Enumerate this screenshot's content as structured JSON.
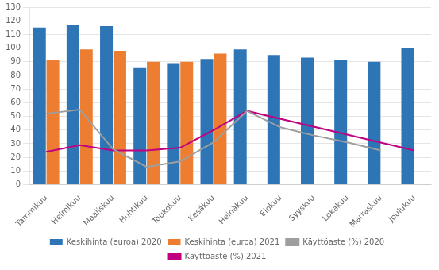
{
  "chart_data": {
    "type": "bar",
    "categories": [
      "Tammikuu",
      "Helmikuu",
      "Maaliskuu",
      "Huhtikuu",
      "Toukokuu",
      "Kesäkuu",
      "Heinäkuu",
      "Elokuu",
      "Syyskuu",
      "Lokakuu",
      "Marraskuu",
      "Joulukuu"
    ],
    "series": [
      {
        "name": "Keskihinta (euroa) 2020",
        "type": "bar",
        "color": "#2E75B6",
        "values": [
          115,
          117,
          116,
          86,
          89,
          92,
          99,
          95,
          93,
          91,
          90,
          100
        ]
      },
      {
        "name": "Keskihinta (euroa) 2021",
        "type": "bar",
        "color": "#ED7D31",
        "values": [
          91,
          99,
          98,
          90,
          90,
          96,
          null,
          null,
          null,
          null,
          null,
          null
        ]
      },
      {
        "name": "Käyttöaste (%) 2020",
        "type": "line",
        "color": "#9E9E9E",
        "values": [
          52,
          55,
          26,
          13,
          17,
          31,
          54,
          42,
          36,
          31,
          25,
          null
        ]
      },
      {
        "name": "Käyttöaste (%) 2021",
        "type": "line",
        "color": "#C00080",
        "values": [
          24,
          29,
          25,
          25,
          27,
          40,
          54,
          null,
          null,
          null,
          null,
          25
        ]
      }
    ],
    "ylim": [
      0,
      130
    ],
    "yticks": [
      0,
      10,
      20,
      30,
      40,
      50,
      60,
      70,
      80,
      90,
      100,
      110,
      120,
      130
    ],
    "grid": true,
    "legend": "bottom"
  }
}
